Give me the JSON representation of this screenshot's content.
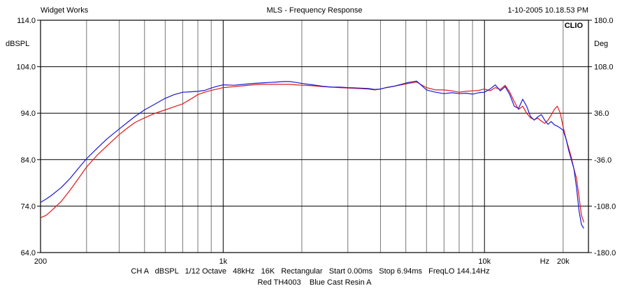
{
  "header": {
    "company": "Widget Works",
    "title": "MLS - Frequency Response",
    "timestamp": "1-10-2005 10.18.53 PM",
    "brand": "CLIO"
  },
  "footer": {
    "settings": "CH A   dBSPL   1/12 Octave   48kHz   16K   Rectangular   Start 0.00ms   Stop 6.94ms   FreqLO 144.14Hz",
    "legend": "Red TH4003    Blue Cast Resin A"
  },
  "chart_data": {
    "type": "line",
    "title": "MLS - Frequency Response",
    "x_scale": "log",
    "xlim": [
      200,
      25000
    ],
    "x_tick_labels": [
      {
        "value": 200,
        "label": "200"
      },
      {
        "value": 1000,
        "label": "1k"
      },
      {
        "value": 10000,
        "label": "10k"
      },
      {
        "value": 17000,
        "label": "Hz"
      },
      {
        "value": 20000,
        "label": "20k"
      }
    ],
    "x_gridlines": [
      300,
      400,
      500,
      600,
      700,
      800,
      900,
      1000,
      2000,
      3000,
      4000,
      5000,
      6000,
      7000,
      8000,
      9000,
      10000,
      20000
    ],
    "ylabel": "dBSPL",
    "ylim": [
      64,
      114
    ],
    "y_ticks": [
      "114.0",
      "104.0",
      "94.0",
      "84.0",
      "74.0",
      "64.0"
    ],
    "y2label": "Deg",
    "y2lim": [
      -180,
      180
    ],
    "y2_ticks": [
      "180.0",
      "108.0",
      "36.0",
      "-36.0",
      "-108.0",
      "-180.0"
    ],
    "grid": true,
    "series": [
      {
        "name": "Cast Resin A",
        "color": "#1a1ad6",
        "x": [
          200,
          210,
          220,
          240,
          260,
          280,
          300,
          330,
          360,
          400,
          430,
          460,
          500,
          550,
          600,
          650,
          700,
          750,
          800,
          850,
          900,
          950,
          1000,
          1100,
          1200,
          1300,
          1400,
          1500,
          1600,
          1700,
          1800,
          1900,
          2000,
          2200,
          2400,
          2600,
          2800,
          3000,
          3300,
          3600,
          3800,
          4000,
          4200,
          4500,
          4800,
          5100,
          5500,
          6000,
          6500,
          7000,
          7500,
          8000,
          8500,
          9000,
          9500,
          10000,
          10500,
          11000,
          11500,
          12000,
          12500,
          13000,
          13500,
          14000,
          14500,
          15000,
          15500,
          16000,
          16500,
          17000,
          17500,
          18000,
          18500,
          19000,
          19500,
          20000,
          20500,
          21000,
          21500,
          22000,
          22500,
          23000,
          23500,
          24000
        ],
        "y": [
          74.8,
          75.5,
          76.3,
          78.0,
          80.0,
          82.2,
          84.2,
          86.5,
          88.5,
          90.6,
          92.0,
          93.3,
          94.7,
          96.0,
          97.2,
          98.0,
          98.5,
          98.6,
          98.7,
          98.9,
          99.4,
          99.8,
          100.1,
          100.0,
          100.2,
          100.4,
          100.5,
          100.6,
          100.7,
          100.8,
          100.8,
          100.6,
          100.4,
          100.1,
          99.8,
          99.6,
          99.6,
          99.5,
          99.4,
          99.3,
          99.1,
          99.2,
          99.5,
          99.8,
          100.2,
          100.6,
          100.9,
          99.0,
          98.5,
          98.2,
          98.4,
          98.2,
          98.3,
          98.1,
          98.4,
          98.5,
          99.2,
          100.1,
          98.8,
          99.7,
          98.0,
          95.5,
          95.0,
          97.0,
          95.5,
          93.3,
          92.5,
          93.2,
          93.7,
          92.5,
          91.6,
          92.2,
          91.5,
          91.2,
          90.8,
          90.3,
          88.5,
          86.0,
          84.0,
          82.0,
          78.0,
          73.0,
          70.0,
          69.2
        ],
        "y_values": "dBSPL"
      },
      {
        "name": "TH4003",
        "color": "#e01818",
        "x": [
          200,
          210,
          220,
          240,
          260,
          280,
          300,
          330,
          360,
          400,
          430,
          460,
          500,
          550,
          600,
          650,
          700,
          750,
          800,
          850,
          900,
          950,
          1000,
          1100,
          1200,
          1300,
          1400,
          1500,
          1600,
          1700,
          1800,
          1900,
          2000,
          2200,
          2400,
          2600,
          2800,
          3000,
          3300,
          3600,
          3800,
          4000,
          4200,
          4500,
          4800,
          5100,
          5500,
          6000,
          6500,
          7000,
          7500,
          8000,
          8500,
          9000,
          9500,
          10000,
          10500,
          11000,
          11500,
          12000,
          12500,
          13000,
          13500,
          14000,
          14500,
          15000,
          15500,
          16000,
          16500,
          17000,
          17500,
          18000,
          18500,
          19000,
          19500,
          20000,
          20500,
          21000,
          21500,
          22000,
          22500,
          23000,
          23500,
          24000
        ],
        "y": [
          71.5,
          72.0,
          73.0,
          75.0,
          77.5,
          80.0,
          82.4,
          85.0,
          87.0,
          89.4,
          90.8,
          92.0,
          93.0,
          94.0,
          94.7,
          95.4,
          96.0,
          97.0,
          98.0,
          98.5,
          98.9,
          99.2,
          99.5,
          99.7,
          99.9,
          100.1,
          100.2,
          100.2,
          100.2,
          100.2,
          100.2,
          100.1,
          100.0,
          99.9,
          99.7,
          99.6,
          99.5,
          99.4,
          99.3,
          99.2,
          99.0,
          99.2,
          99.5,
          99.8,
          100.1,
          100.4,
          100.7,
          99.5,
          99.0,
          99.0,
          98.8,
          98.5,
          98.7,
          98.8,
          98.9,
          99.2,
          98.8,
          99.5,
          99.1,
          100.0,
          98.5,
          96.5,
          94.8,
          95.5,
          94.0,
          93.0,
          92.6,
          92.9,
          92.3,
          91.8,
          92.5,
          93.6,
          94.8,
          95.5,
          94.0,
          91.0,
          88.5,
          86.5,
          84.5,
          82.0,
          80.0,
          76.0,
          72.0,
          70.5
        ],
        "y_values": "dBSPL"
      }
    ]
  }
}
